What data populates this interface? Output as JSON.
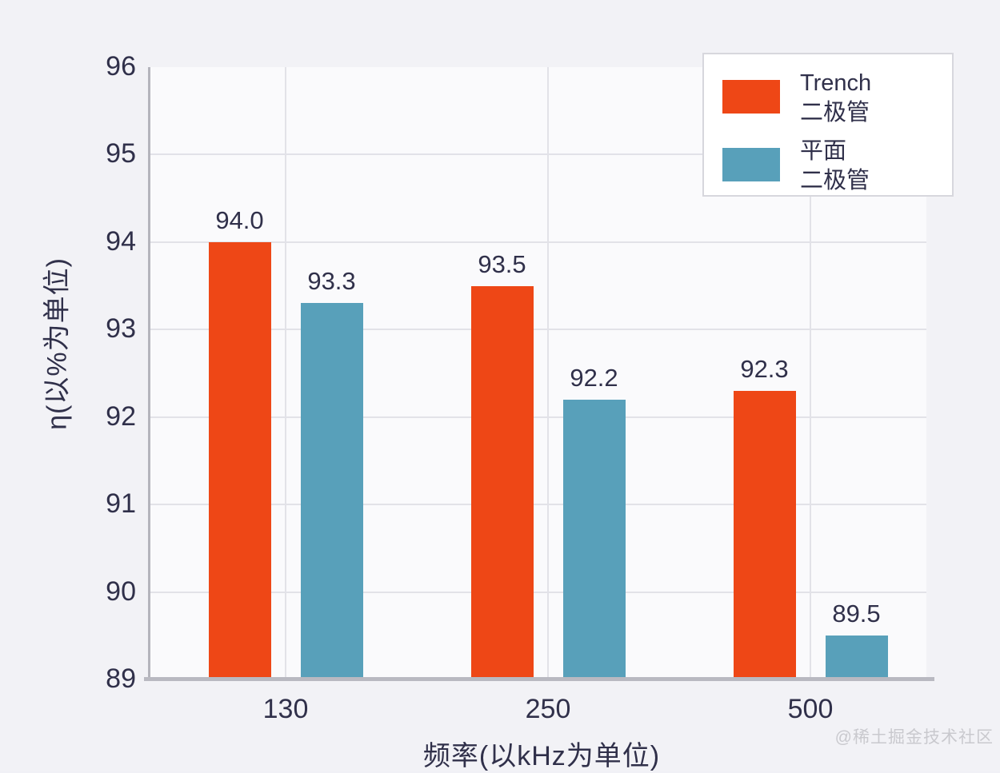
{
  "chart_data": {
    "type": "bar",
    "categories": [
      "130",
      "250",
      "500"
    ],
    "series": [
      {
        "name": "Trench 二极管",
        "legend_lines": [
          "Trench",
          "二极管"
        ],
        "color": "#ee4716",
        "values": [
          94.0,
          93.5,
          92.3
        ],
        "labels": [
          "94.0",
          "93.5",
          "92.3"
        ]
      },
      {
        "name": "平面 二极管",
        "legend_lines": [
          "平面",
          "二极管"
        ],
        "color": "#58a0ba",
        "values": [
          93.3,
          92.2,
          89.5
        ],
        "labels": [
          "93.3",
          "92.2",
          "89.5"
        ]
      }
    ],
    "xlabel": "频率(以kHz为单位)",
    "ylabel": "η(以%为单位)",
    "ylim": [
      89,
      96
    ],
    "yticks": [
      89,
      90,
      91,
      92,
      93,
      94,
      95,
      96
    ],
    "grid": true,
    "legend_position": "top-right"
  },
  "colors": {
    "trench_bar": "#ee4716",
    "planar_bar": "#58a0ba",
    "text": "#30304a",
    "gridline": "#e2e2e8",
    "axis": "#b4b4bc",
    "plot_background": "#fafafc",
    "page_background": "#f2f2f6"
  },
  "watermark": "@稀土掘金技术社区"
}
